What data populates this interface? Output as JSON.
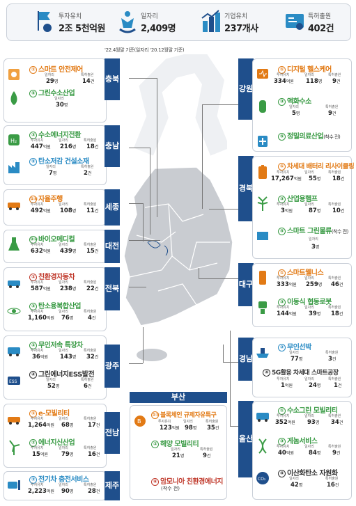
{
  "summary": [
    {
      "label": "투자유치",
      "value": "2조 5천억원",
      "icon": "flag-coin-icon"
    },
    {
      "label": "일자리",
      "value": "2,409명",
      "icon": "people-icon"
    },
    {
      "label": "기업유치",
      "value": "237개사",
      "icon": "buildings-growth-icon"
    },
    {
      "label": "특허출원",
      "value": "402건",
      "icon": "patent-certificate-icon"
    }
  ],
  "note": "'22.4월말 기준(일자리 '20.12월말 기준)",
  "stat_labels": {
    "invest": "투자유치",
    "jobs": "일자리",
    "patents": "특허출원"
  },
  "units": {
    "won": "억원",
    "people": "명",
    "count": "건"
  },
  "regions": {
    "chungbuk": {
      "name": "충북",
      "items": [
        {
          "num": "①",
          "title": "스마트 안전제어",
          "stats": [
            "29",
            "14"
          ],
          "heads": [
            "일자리",
            "특허출원"
          ],
          "units": [
            "명",
            "건"
          ]
        },
        {
          "num": "⑤",
          "title": "그린수소산업",
          "stats": [
            "30"
          ],
          "heads": [
            "일자리"
          ],
          "units": [
            "명"
          ]
        }
      ]
    },
    "chungnam": {
      "name": "충남",
      "items": [
        {
          "num": "③",
          "title": "수소에너지전환",
          "stats": [
            "447",
            "216",
            "18"
          ],
          "heads": [
            "투자유치",
            "일자리",
            "특허출원"
          ],
          "units": [
            "억원",
            "명",
            "건"
          ]
        },
        {
          "num": "⑤",
          "title": "탄소저감 건설소재",
          "stats": [
            "7",
            "2"
          ],
          "heads": [
            "일자리",
            "특허출원"
          ],
          "units": [
            "명",
            "건"
          ]
        }
      ]
    },
    "sejong": {
      "name": "세종",
      "items": [
        {
          "num": "①④",
          "title": "자율주행",
          "stats": [
            "492",
            "108",
            "11"
          ],
          "heads": [
            "투자유치",
            "일자리",
            "특허출원"
          ],
          "units": [
            "억원",
            "명",
            "건"
          ]
        }
      ]
    },
    "daejeon": {
      "name": "대전",
      "items": [
        {
          "num": "②③",
          "title": "바이오메디컬",
          "stats": [
            "632",
            "439",
            "15"
          ],
          "heads": [
            "투자유치",
            "일자리",
            "특허출원"
          ],
          "units": [
            "억원",
            "명",
            "건"
          ]
        }
      ]
    },
    "jeonbuk": {
      "name": "전북",
      "items": [
        {
          "num": "②",
          "title": "친환경자동차",
          "stats": [
            "587",
            "238",
            "22"
          ],
          "heads": [
            "투자유치",
            "일자리",
            "특허출원"
          ],
          "units": [
            "억원",
            "명",
            "건"
          ]
        },
        {
          "num": "③",
          "title": "탄소융복합산업",
          "stats": [
            "1,160",
            "76",
            "4"
          ],
          "heads": [
            "투자유치",
            "일자리",
            "특허출원"
          ],
          "units": [
            "억원",
            "명",
            "건"
          ]
        }
      ]
    },
    "gwangju": {
      "name": "광주",
      "items": [
        {
          "num": "②",
          "title": "무인저속 특장차",
          "stats": [
            "36",
            "143",
            "32"
          ],
          "heads": [
            "투자유치",
            "일자리",
            "특허출원"
          ],
          "units": [
            "억원",
            "명",
            "건"
          ]
        },
        {
          "num": "④",
          "title": "그린에너지ESS발전",
          "stats": [
            "52",
            "6"
          ],
          "heads": [
            "일자리",
            "특허출원"
          ],
          "units": [
            "명",
            "건"
          ]
        }
      ]
    },
    "jeonnam": {
      "name": "전남",
      "items": [
        {
          "num": "①",
          "title": "e-모빌리티",
          "stats": [
            "1,264",
            "68",
            "17"
          ],
          "heads": [
            "투자유치",
            "일자리",
            "특허출원"
          ],
          "units": [
            "억원",
            "명",
            "건"
          ]
        },
        {
          "num": "②",
          "title": "에너지신산업",
          "stats": [
            "15",
            "79",
            "16"
          ],
          "heads": [
            "투자유치",
            "일자리",
            "특허출원"
          ],
          "units": [
            "억원",
            "명",
            "건"
          ]
        }
      ]
    },
    "jeju": {
      "name": "제주",
      "items": [
        {
          "num": "②",
          "title": "전기차 충전서비스",
          "stats": [
            "2,223",
            "90",
            "28"
          ],
          "heads": [
            "투자유치",
            "일자리",
            "특허출원"
          ],
          "units": [
            "억원",
            "명",
            "건"
          ]
        }
      ]
    },
    "busan": {
      "name": "부산",
      "items": [
        {
          "num": "①③",
          "title": "블록체인 규제자유특구",
          "stats": [
            "123",
            "98",
            "35"
          ],
          "heads": [
            "투자유치",
            "일자리",
            "특허출원"
          ],
          "units": [
            "억원",
            "명",
            "건"
          ]
        },
        {
          "num": "②",
          "title": "해양 모빌리티",
          "stats": [
            "21",
            "9"
          ],
          "heads": [
            "일자리",
            "특허출원"
          ],
          "units": [
            "명",
            "건"
          ]
        },
        {
          "num": "⑥",
          "title": "암모니아 친환경에너지",
          "sub": "(착수 전)"
        }
      ]
    },
    "gangwon": {
      "name": "강원",
      "items": [
        {
          "num": "①",
          "title": "디지털 헬스케어",
          "stats": [
            "334",
            "118",
            "9"
          ],
          "heads": [
            "투자유치",
            "일자리",
            "특허출원"
          ],
          "units": [
            "억원",
            "명",
            "건"
          ]
        },
        {
          "num": "③",
          "title": "액화수소",
          "stats": [
            "5",
            "9"
          ],
          "heads": [
            "일자리",
            "특허출원"
          ],
          "units": [
            "명",
            "건"
          ]
        },
        {
          "num": "⑤",
          "title": "정밀의료산업",
          "sub": "(착수 전)"
        }
      ]
    },
    "gyeongbuk": {
      "name": "경북",
      "items": [
        {
          "num": "①",
          "title": "차세대 배터리 리사이클링",
          "stats": [
            "17,267",
            "55",
            "18"
          ],
          "heads": [
            "투자유치",
            "일자리",
            "특허출원"
          ],
          "units": [
            "억원",
            "명",
            "건"
          ]
        },
        {
          "num": "③",
          "title": "산업용햄프",
          "stats": [
            "3",
            "87",
            "10"
          ],
          "heads": [
            "투자유치",
            "일자리",
            "특허출원"
          ],
          "units": [
            "억원",
            "명",
            "건"
          ]
        },
        {
          "num": "⑤",
          "title": "스마트 그린물류",
          "sub": "(착수 전)",
          "stats": [
            "3"
          ],
          "heads": [
            "일자리"
          ],
          "units": [
            "명"
          ]
        }
      ]
    },
    "daegu": {
      "name": "대구",
      "items": [
        {
          "num": "①",
          "title": "스마트웰니스",
          "stats": [
            "333",
            "259",
            "46"
          ],
          "heads": [
            "투자유치",
            "일자리",
            "특허출원"
          ],
          "units": [
            "억원",
            "명",
            "건"
          ]
        },
        {
          "num": "③",
          "title": "이동식 협동로봇",
          "stats": [
            "144",
            "39",
            "18"
          ],
          "heads": [
            "투자유치",
            "일자리",
            "특허출원"
          ],
          "units": [
            "억원",
            "명",
            "건"
          ]
        }
      ]
    },
    "gyeongnam": {
      "name": "경남",
      "items": [
        {
          "num": "②",
          "title": "무인선박",
          "stats": [
            "77",
            "3"
          ],
          "heads": [
            "일자리",
            "특허출원"
          ],
          "units": [
            "명",
            "건"
          ]
        },
        {
          "num": "④",
          "title": "5G활용 차세대 스마트공장",
          "stats": [
            "1",
            "24",
            "1"
          ],
          "heads": [
            "투자유치",
            "일자리",
            "특허출원"
          ],
          "units": [
            "억원",
            "명",
            "건"
          ]
        }
      ]
    },
    "ulsan": {
      "name": "울산",
      "items": [
        {
          "num": "①",
          "title": "수소그린 모빌리티",
          "stats": [
            "352",
            "93",
            "34"
          ],
          "heads": [
            "투자유치",
            "일자리",
            "특허출원"
          ],
          "units": [
            "억원",
            "명",
            "건"
          ]
        },
        {
          "num": "③",
          "title": "게놈서비스",
          "stats": [
            "40",
            "84",
            "9"
          ],
          "heads": [
            "투자유치",
            "일자리",
            "특허출원"
          ],
          "units": [
            "억원",
            "명",
            "건"
          ]
        },
        {
          "num": "④",
          "title": "이산화탄소 자원화",
          "stats": [
            "42",
            "16"
          ],
          "heads": [
            "일자리",
            "특허출원"
          ],
          "units": [
            "명",
            "건"
          ]
        }
      ]
    }
  },
  "colors": {
    "navy": "#1f4f8c",
    "orange": "#e27a15",
    "green": "#3a9b45",
    "blue": "#2a8bc4",
    "map": "#c9ccd1"
  }
}
